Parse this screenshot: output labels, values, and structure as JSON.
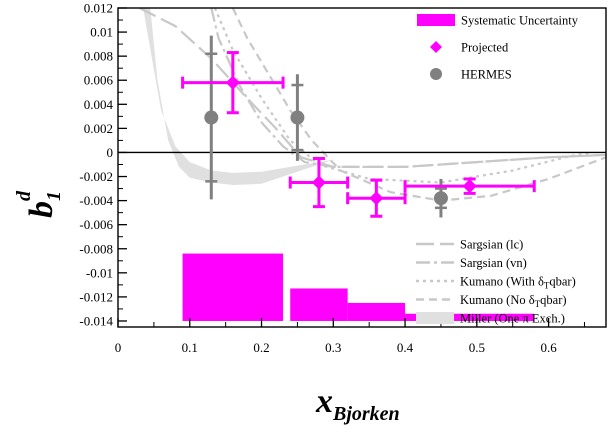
{
  "chart_data": {
    "type": "scatter",
    "xlabel": "x",
    "xlabel_sub": "Bjorken",
    "ylabel": "b",
    "ylabel_sub": "1",
    "ylabel_sup": "d",
    "xlim": [
      0,
      0.68
    ],
    "ylim": [
      -0.0145,
      0.012
    ],
    "x_ticks": [
      0,
      0.1,
      0.2,
      0.3,
      0.4,
      0.5,
      0.6
    ],
    "x_tick_labels": [
      "0",
      "0.1",
      "0.2",
      "0.3",
      "0.4",
      "0.5",
      "0.6"
    ],
    "y_ticks": [
      0.012,
      0.01,
      0.008,
      0.006,
      0.004,
      0.002,
      0,
      -0.002,
      -0.004,
      -0.006,
      -0.008,
      -0.01,
      -0.012,
      -0.014
    ],
    "y_tick_labels": [
      "0.012",
      "0.01",
      "0.008",
      "0.006",
      "0.004",
      "0.002",
      "0",
      "-0.002",
      "-0.004",
      "-0.006",
      "-0.008",
      "-0.01",
      "-0.012",
      "-0.014"
    ],
    "zero_line": true,
    "grid": false,
    "legend_position": "top-right",
    "legend_bottom_position": "bottom-right",
    "colors": {
      "projected": "#ff00ff",
      "hermes": "#808080",
      "models": "#c8c8c8",
      "band": "#e0e0e0"
    },
    "legend_top": [
      {
        "label": "Systematic Uncertainty",
        "marker": "rect",
        "color": "#ff00ff"
      },
      {
        "label": "Projected",
        "marker": "diamond",
        "color": "#ff00ff"
      },
      {
        "label": "HERMES",
        "marker": "circle",
        "color": "#808080"
      }
    ],
    "legend_bottom": [
      {
        "label": "Sargsian (lc)",
        "style": "long-dash"
      },
      {
        "label": "Sargsian (vn)",
        "style": "dash-dot"
      },
      {
        "label_pre": "Kumano (With δ",
        "label_sub": "T",
        "label_post": "qbar)",
        "style": "dotted"
      },
      {
        "label_pre": "Kumano (No δ",
        "label_sub": "T",
        "label_post": "qbar)",
        "style": "short-dash"
      },
      {
        "label": "Miller (One π Exch.)",
        "style": "band"
      }
    ],
    "series": [
      {
        "name": "Projected",
        "marker": "diamond",
        "points": [
          {
            "x": 0.16,
            "y": 0.0058,
            "xerr_lo": 0.07,
            "xerr_hi": 0.07,
            "yerr": 0.0025
          },
          {
            "x": 0.28,
            "y": -0.0025,
            "xerr_lo": 0.04,
            "xerr_hi": 0.04,
            "yerr": 0.002
          },
          {
            "x": 0.36,
            "y": -0.0038,
            "xerr_lo": 0.04,
            "xerr_hi": 0.04,
            "yerr": 0.0015
          },
          {
            "x": 0.49,
            "y": -0.0028,
            "xerr_lo": 0.09,
            "xerr_hi": 0.09,
            "yerr": 0.0006
          }
        ]
      },
      {
        "name": "HERMES",
        "marker": "circle",
        "points": [
          {
            "x": 0.13,
            "y": 0.0029,
            "yerr_stat": 0.0068,
            "yerr_sys": 0.0053
          },
          {
            "x": 0.25,
            "y": 0.0029,
            "yerr_stat": 0.0036,
            "yerr_sys": 0.0027
          },
          {
            "x": 0.45,
            "y": -0.0038,
            "yerr_stat": 0.0016,
            "yerr_sys": 0.0008
          }
        ]
      }
    ],
    "systematic_uncertainty_bars": [
      {
        "x_from": 0.09,
        "x_to": 0.23,
        "y_top": -0.0084
      },
      {
        "x_from": 0.24,
        "x_to": 0.32,
        "y_top": -0.0113
      },
      {
        "x_from": 0.32,
        "x_to": 0.4,
        "y_top": -0.0125
      },
      {
        "x_from": 0.4,
        "x_to": 0.58,
        "y_top": -0.0134
      }
    ],
    "systematic_baseline": -0.014,
    "model_curves": [
      {
        "style": "long-dash",
        "points": [
          [
            0.03,
            0.012
          ],
          [
            0.08,
            0.0105
          ],
          [
            0.13,
            0.0078
          ],
          [
            0.18,
            0.0045
          ],
          [
            0.22,
            0.002
          ],
          [
            0.255,
            -0.0004
          ],
          [
            0.3,
            -0.0012
          ],
          [
            0.4,
            -0.0012
          ],
          [
            0.5,
            -0.0008
          ],
          [
            0.6,
            -0.0004
          ],
          [
            0.68,
            -0.0002
          ]
        ]
      },
      {
        "style": "dash-dot",
        "points": [
          [
            0.13,
            0.012
          ],
          [
            0.14,
            0.0095
          ],
          [
            0.17,
            0.0055
          ],
          [
            0.2,
            0.0025
          ],
          [
            0.23,
            0.0005
          ],
          [
            0.26,
            -0.0008
          ],
          [
            0.3,
            -0.0012
          ],
          [
            0.4,
            -0.0012
          ],
          [
            0.5,
            -0.0008
          ],
          [
            0.6,
            -0.0004
          ],
          [
            0.68,
            -0.0002
          ]
        ]
      },
      {
        "style": "dotted",
        "points": [
          [
            0.135,
            0.012
          ],
          [
            0.16,
            0.0085
          ],
          [
            0.2,
            0.0045
          ],
          [
            0.24,
            0.001
          ],
          [
            0.28,
            -0.001
          ],
          [
            0.35,
            -0.0022
          ],
          [
            0.45,
            -0.0025
          ],
          [
            0.55,
            -0.0015
          ],
          [
            0.63,
            -0.0003
          ],
          [
            0.66,
            0.0
          ]
        ]
      },
      {
        "style": "short-dash",
        "points": [
          [
            0.16,
            0.012
          ],
          [
            0.18,
            0.0095
          ],
          [
            0.21,
            0.0065
          ],
          [
            0.24,
            0.0035
          ],
          [
            0.27,
            0.001
          ],
          [
            0.31,
            -0.0015
          ],
          [
            0.38,
            -0.0033
          ],
          [
            0.45,
            -0.004
          ],
          [
            0.52,
            -0.0036
          ],
          [
            0.6,
            -0.0022
          ],
          [
            0.68,
            -0.0004
          ]
        ]
      }
    ],
    "miller_band": {
      "upper": [
        [
          0.035,
          0.012
        ],
        [
          0.06,
          0.0035
        ],
        [
          0.08,
          0.0005
        ],
        [
          0.1,
          -0.0008
        ],
        [
          0.13,
          -0.0015
        ],
        [
          0.16,
          -0.0017
        ],
        [
          0.2,
          -0.0016
        ],
        [
          0.24,
          -0.0012
        ],
        [
          0.28,
          -0.0008
        ],
        [
          0.3,
          -0.0006
        ]
      ],
      "lower": [
        [
          0.3,
          -0.0006
        ],
        [
          0.28,
          -0.001
        ],
        [
          0.24,
          -0.0018
        ],
        [
          0.2,
          -0.0026
        ],
        [
          0.16,
          -0.0027
        ],
        [
          0.13,
          -0.0025
        ],
        [
          0.1,
          -0.0021
        ],
        [
          0.085,
          -0.0012
        ],
        [
          0.07,
          0.001
        ],
        [
          0.055,
          0.006
        ],
        [
          0.045,
          0.012
        ]
      ]
    }
  }
}
